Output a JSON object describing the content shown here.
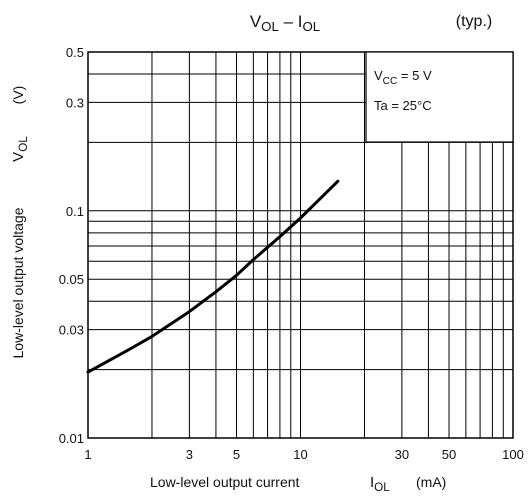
{
  "chart_data": {
    "type": "line",
    "title": {
      "main": "V",
      "main_sub": "OL",
      "sep": " – ",
      "main2": "I",
      "main2_sub": "OL"
    },
    "note": "(typ.)",
    "xscale": "log",
    "yscale": "log",
    "xlim": [
      1,
      100
    ],
    "ylim": [
      0.01,
      0.5
    ],
    "x_ticks": [
      "1",
      "3",
      "5",
      "10",
      "30",
      "50",
      "100"
    ],
    "y_ticks": [
      "0.01",
      "0.03",
      "0.05",
      "0.1",
      "0.3",
      "0.5"
    ],
    "xlabel": {
      "text": "Low-level output current",
      "sym": "I",
      "sym_sub": "OL",
      "unit": "(mA)"
    },
    "ylabel": {
      "text": "Low-level output voltage",
      "sym": "V",
      "sym_sub": "OL",
      "unit": "(V)"
    },
    "conditions": [
      {
        "pre": "V",
        "sub": "CC",
        "post": " = 5 V"
      },
      {
        "pre": "Ta = 25°C",
        "sub": "",
        "post": ""
      }
    ],
    "grid": true,
    "series": [
      {
        "x": [
          1.0,
          1.5,
          2.0,
          3.0,
          4.0,
          5.0,
          6.0,
          8.0,
          10.0,
          12.0,
          15.0
        ],
        "y": [
          0.0195,
          0.024,
          0.028,
          0.036,
          0.044,
          0.052,
          0.061,
          0.077,
          0.093,
          0.11,
          0.135
        ]
      }
    ]
  }
}
